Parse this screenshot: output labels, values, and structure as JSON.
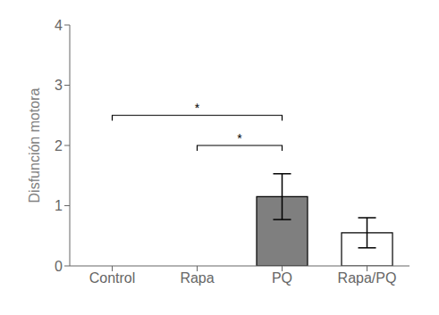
{
  "chart_data": {
    "type": "bar",
    "categories": [
      "Control",
      "Rapa",
      "PQ",
      "Rapa/PQ"
    ],
    "values": [
      0,
      0,
      1.15,
      0.55
    ],
    "errors": [
      0,
      0,
      0.38,
      0.25
    ],
    "colors": [
      "white",
      "white",
      "#7f7f7f",
      "white"
    ],
    "ylabel": "Disfunción motora",
    "ylim": [
      0,
      4
    ],
    "yticks": [
      0,
      1,
      2,
      3,
      4
    ],
    "grid": false,
    "annotations": [
      {
        "x1": "Control",
        "x2": "PQ",
        "y": 2.5,
        "label": "*"
      },
      {
        "x1": "Rapa",
        "x2": "PQ",
        "y": 2.0,
        "label": "*"
      }
    ]
  }
}
